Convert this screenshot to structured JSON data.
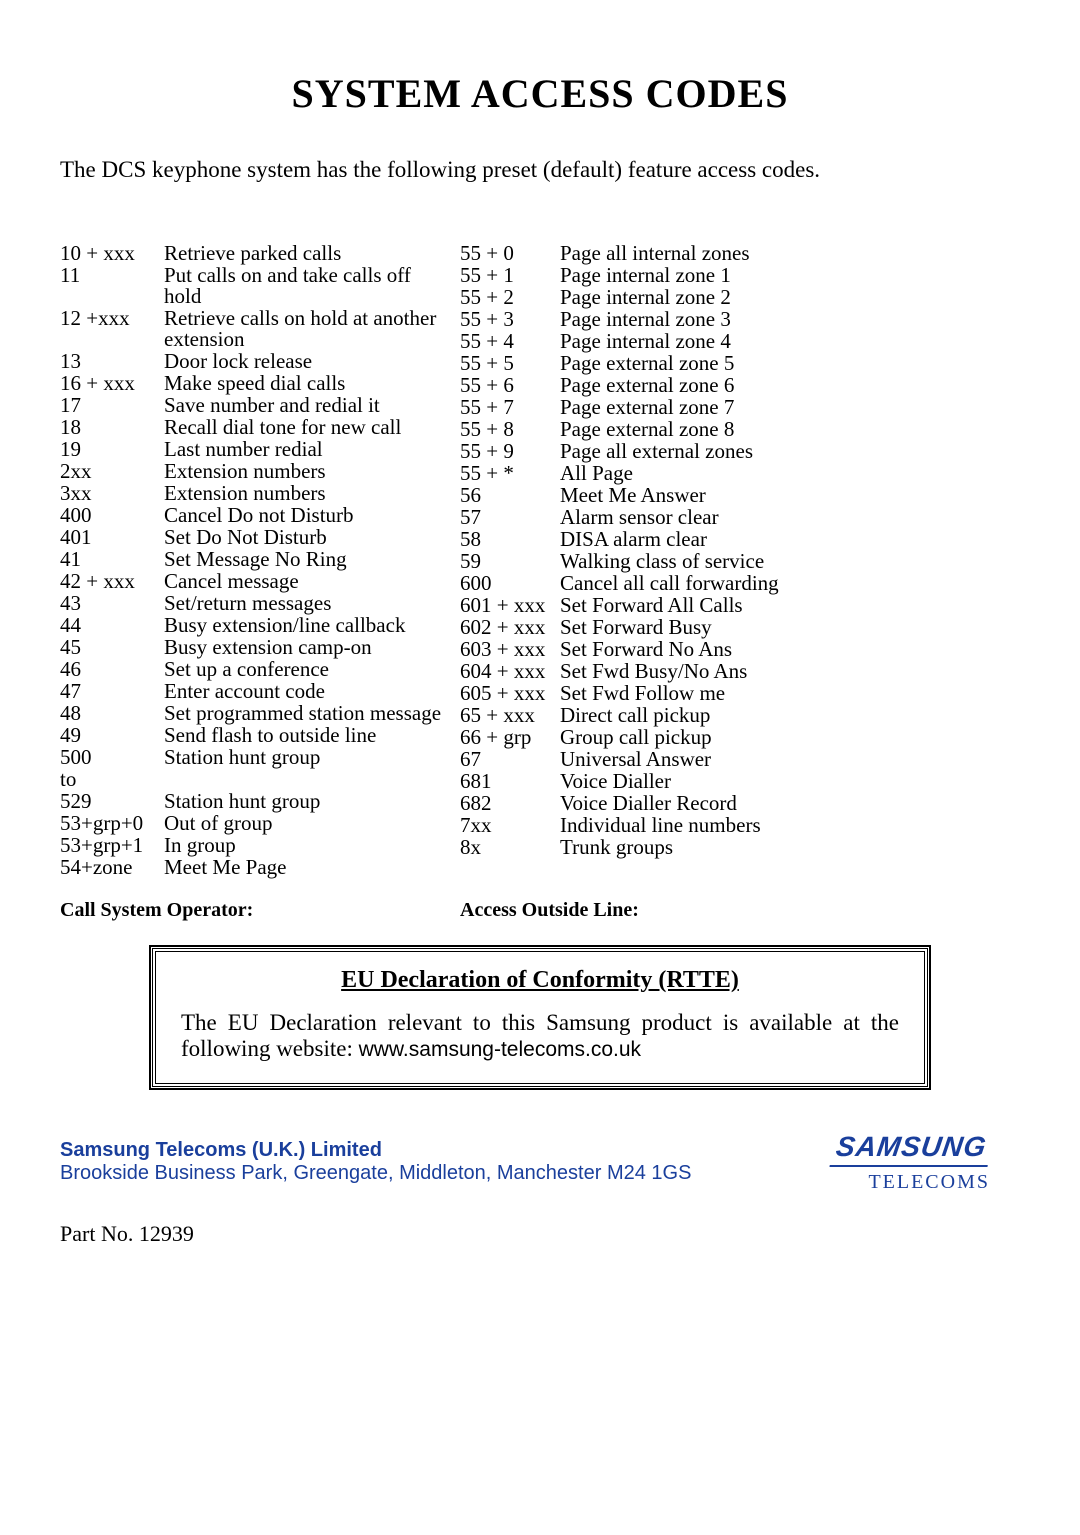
{
  "title": "SYSTEM ACCESS CODES",
  "intro": "The DCS keyphone system has the following preset (default) feature access codes.",
  "left_codes": [
    {
      "code": "10 + xxx",
      "desc": "Retrieve parked calls"
    },
    {
      "code": "11",
      "desc": "Put calls on and take calls off hold"
    },
    {
      "code": "12 +xxx",
      "desc": "Retrieve calls on hold at another extension"
    },
    {
      "code": "13",
      "desc": "Door lock release"
    },
    {
      "code": "16 + xxx",
      "desc": "Make speed dial calls"
    },
    {
      "code": "17",
      "desc": "Save number and redial it"
    },
    {
      "code": "18",
      "desc": "Recall dial tone for new call"
    },
    {
      "code": "19",
      "desc": "Last number redial"
    },
    {
      "code": "2xx",
      "desc": "Extension numbers"
    },
    {
      "code": "3xx",
      "desc": "Extension numbers"
    },
    {
      "code": "400",
      "desc": "Cancel Do not Disturb"
    },
    {
      "code": "401",
      "desc": "Set Do Not Disturb"
    },
    {
      "code": "41",
      "desc": "Set Message No Ring"
    },
    {
      "code": "42 + xxx",
      "desc": "Cancel message"
    },
    {
      "code": "43",
      "desc": "Set/return messages"
    },
    {
      "code": "44",
      "desc": "Busy extension/line callback"
    },
    {
      "code": "45",
      "desc": "Busy extension camp-on"
    },
    {
      "code": "46",
      "desc": "Set up a conference"
    },
    {
      "code": "47",
      "desc": "Enter account code"
    },
    {
      "code": "48",
      "desc": "Set programmed station message"
    },
    {
      "code": "49",
      "desc": "Send flash to outside line"
    },
    {
      "code": "500",
      "desc": "Station hunt group"
    },
    {
      "code": "to",
      "desc": ""
    },
    {
      "code": "529",
      "desc": "Station hunt group"
    },
    {
      "code": "53+grp+0",
      "desc": "Out of group"
    },
    {
      "code": "53+grp+1",
      "desc": "In group"
    },
    {
      "code": "54+zone",
      "desc": "Meet Me Page"
    }
  ],
  "right_codes": [
    {
      "code": "55 + 0",
      "desc": "Page all internal zones"
    },
    {
      "code": "55 + 1",
      "desc": "Page internal zone 1"
    },
    {
      "code": "55 + 2",
      "desc": "Page internal zone 2"
    },
    {
      "code": "55 + 3",
      "desc": "Page internal zone 3"
    },
    {
      "code": "55 + 4",
      "desc": "Page internal zone 4"
    },
    {
      "code": "55 + 5",
      "desc": "Page external zone 5"
    },
    {
      "code": "55 + 6",
      "desc": "Page external zone 6"
    },
    {
      "code": "55 + 7",
      "desc": "Page external zone 7"
    },
    {
      "code": "55 + 8",
      "desc": "Page external zone 8"
    },
    {
      "code": "55 + 9",
      "desc": "Page all external zones"
    },
    {
      "code": "55 + *",
      "desc": "All Page"
    },
    {
      "code": "56",
      "desc": "Meet Me Answer"
    },
    {
      "code": "57",
      "desc": "Alarm sensor clear"
    },
    {
      "code": "58",
      "desc": "DISA alarm clear"
    },
    {
      "code": "59",
      "desc": "Walking class of service"
    },
    {
      "code": "600",
      "desc": "Cancel all call forwarding"
    },
    {
      "code": "601 + xxx",
      "desc": "Set Forward All Calls"
    },
    {
      "code": "602 + xxx",
      "desc": "Set Forward Busy"
    },
    {
      "code": "603 + xxx",
      "desc": "Set Forward No Ans"
    },
    {
      "code": "604 + xxx",
      "desc": "Set Fwd Busy/No Ans"
    },
    {
      "code": "605 + xxx",
      "desc": "Set Fwd Follow me"
    },
    {
      "code": "65 + xxx",
      "desc": "Direct call pickup"
    },
    {
      "code": "66 + grp",
      "desc": "Group call pickup"
    },
    {
      "code": "67",
      "desc": "Universal Answer"
    },
    {
      "code": "681",
      "desc": "Voice Dialler"
    },
    {
      "code": "682",
      "desc": "Voice Dialler Record"
    },
    {
      "code": "7xx",
      "desc": "Individual line numbers"
    },
    {
      "code": "8x",
      "desc": "Trunk groups"
    }
  ],
  "labels": {
    "left": "Call System Operator:",
    "right": "Access Outside Line:"
  },
  "declaration": {
    "heading": "EU Declaration of Conformity (RTTE)",
    "text_prefix": "The EU Declaration relevant to this Samsung product is available at the following website: ",
    "url": "www.samsung-telecoms.co.uk"
  },
  "company": {
    "name": "Samsung Telecoms (U.K.) Limited",
    "address": "Brookside Business Park, Greengate, Middleton, Manchester M24 1GS"
  },
  "logo": {
    "brand": "SAMSUNG",
    "sub": "TELECOMS"
  },
  "part_no": "Part No. 12939"
}
